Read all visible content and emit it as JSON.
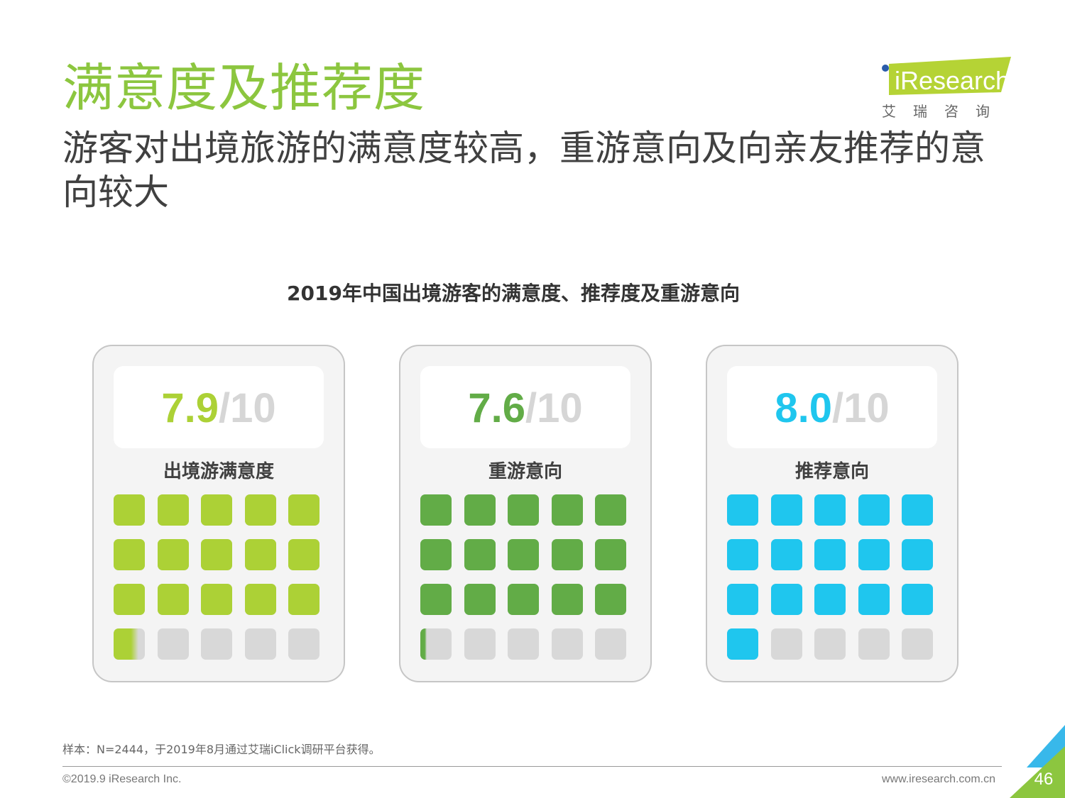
{
  "header": {
    "title": "满意度及推荐度",
    "subtitle": "游客对出境旅游的满意度较高，重游意向及向亲友推荐的意向较大"
  },
  "logo": {
    "wordmark": "iResearch",
    "chinese": "艾瑞咨询"
  },
  "chart_data": {
    "type": "waffle",
    "title": "2019年中国出境游客的满意度、推荐度及重游意向",
    "max": 10,
    "max_label": "/10",
    "series": [
      {
        "name": "出境游满意度",
        "value": 7.9,
        "value_label": "7.9",
        "color": "#acd136"
      },
      {
        "name": "重游意向",
        "value": 7.6,
        "value_label": "7.6",
        "color": "#62ac47"
      },
      {
        "name": "推荐意向",
        "value": 8.0,
        "value_label": "8.0",
        "color": "#1fc6ee"
      }
    ],
    "grid": {
      "rows": 4,
      "cols": 5,
      "empty_color": "#d8d8d8"
    }
  },
  "footer": {
    "note": "样本：N=2444，于2019年8月通过艾瑞iClick调研平台获得。",
    "copyright": "©2019.9 iResearch Inc.",
    "website": "www.iresearch.com.cn",
    "page_number": "46"
  },
  "colors": {
    "title_green": "#8cc63f",
    "corner_green": "#8cc63f",
    "corner_blue": "#38b8ea"
  }
}
